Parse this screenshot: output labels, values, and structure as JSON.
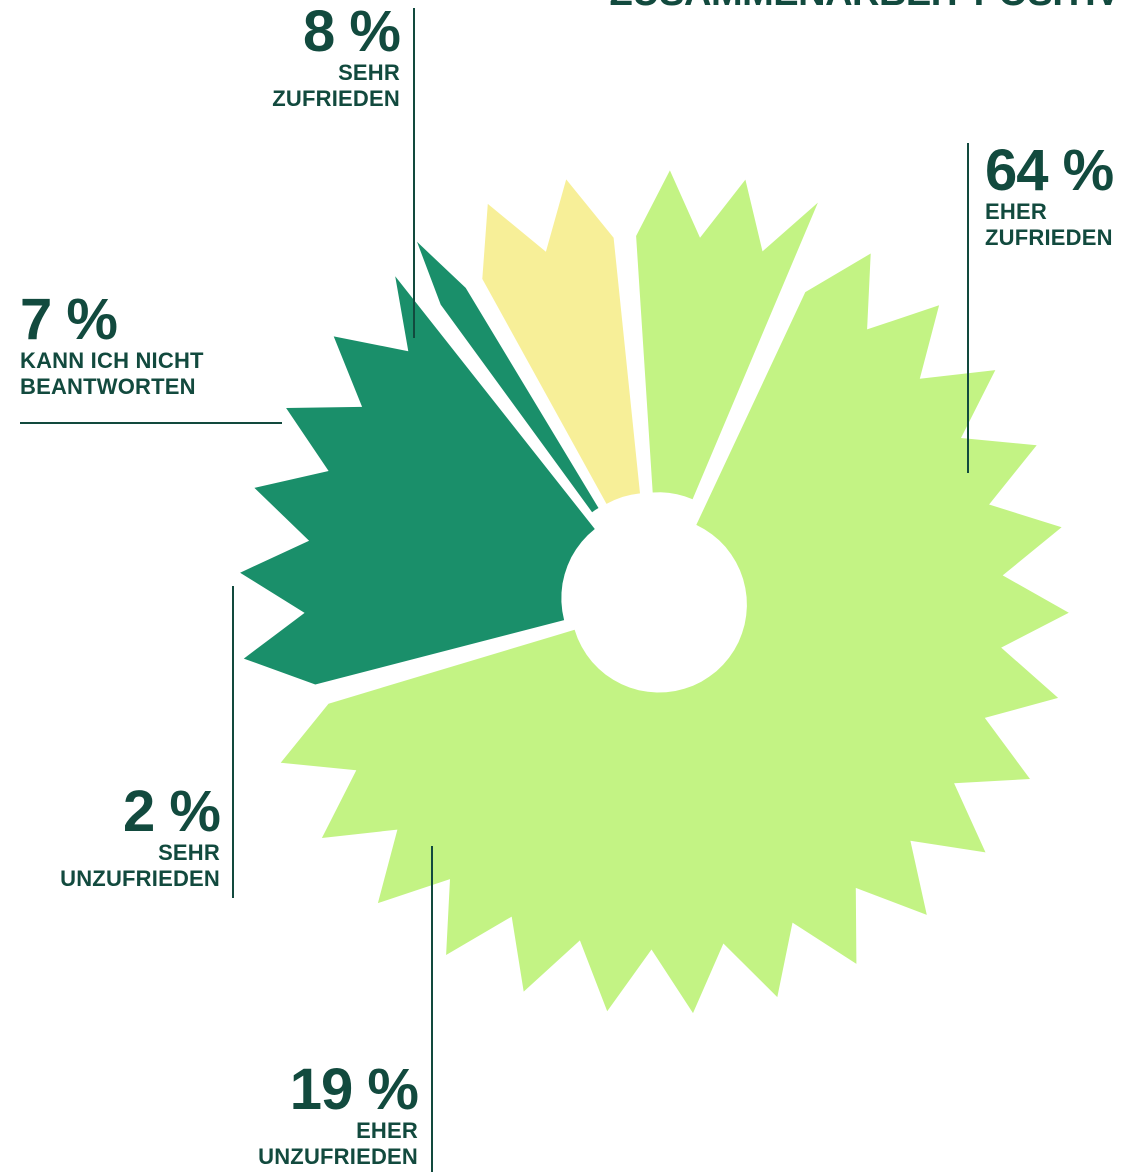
{
  "heading": "ZUSAMMENARBEIT POSITIV",
  "colors": {
    "text": "#124a3e",
    "light_green": "#c3f384",
    "dark_green": "#1a8f6a",
    "yellow": "#f7ef98",
    "background": "#ffffff"
  },
  "chart_data": {
    "type": "pie",
    "style": "donut with zigzag outer edge, exploded slices",
    "unit": "%",
    "slices": [
      {
        "label_line1": "EHER",
        "label_line2": "ZUFRIEDEN",
        "value": 64,
        "value_text": "64 %",
        "color": "#c3f384"
      },
      {
        "label_line1": "EHER",
        "label_line2": "UNZUFRIEDEN",
        "value": 19,
        "value_text": "19 %",
        "color": "#1a8f6a"
      },
      {
        "label_line1": "SEHR",
        "label_line2": "UNZUFRIEDEN",
        "value": 2,
        "value_text": "2 %",
        "color": "#1a8f6a"
      },
      {
        "label_line1": "KANN ICH NICHT",
        "label_line2": "BEANTWORTEN",
        "value": 7,
        "value_text": "7 %",
        "color": "#f7ef98"
      },
      {
        "label_line1": "SEHR",
        "label_line2": "ZUFRIEDEN",
        "value": 8,
        "value_text": "8 %",
        "color": "#c3f384"
      }
    ]
  }
}
